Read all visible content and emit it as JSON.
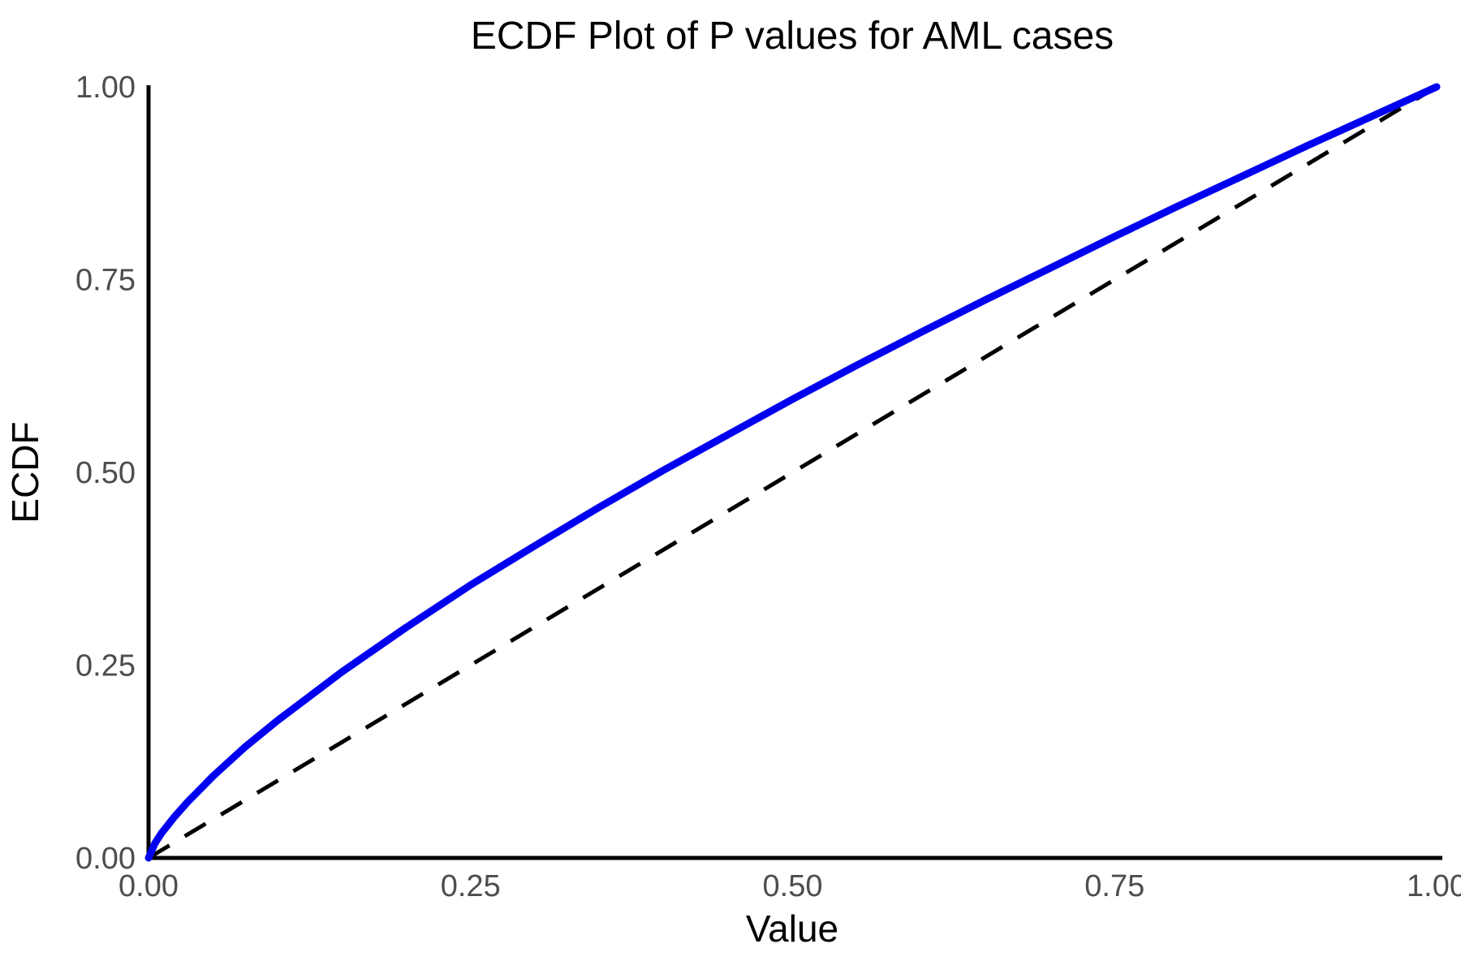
{
  "chart_data": {
    "type": "line",
    "title": "ECDF Plot of P values for AML cases",
    "xlabel": "Value",
    "ylabel": "ECDF",
    "xlim": [
      0,
      1
    ],
    "ylim": [
      0,
      1
    ],
    "grid": false,
    "legend": "none",
    "x_ticks": [
      {
        "value": 0.0,
        "label": "0.00"
      },
      {
        "value": 0.25,
        "label": "0.25"
      },
      {
        "value": 0.5,
        "label": "0.50"
      },
      {
        "value": 0.75,
        "label": "0.75"
      },
      {
        "value": 1.0,
        "label": "1.00"
      }
    ],
    "y_ticks": [
      {
        "value": 0.0,
        "label": "0.00"
      },
      {
        "value": 0.25,
        "label": "0.25"
      },
      {
        "value": 0.5,
        "label": "0.50"
      },
      {
        "value": 0.75,
        "label": "0.75"
      },
      {
        "value": 1.0,
        "label": "1.00"
      }
    ],
    "series": [
      {
        "name": "ecdf-curve",
        "style": "solid",
        "color": "#0000f0",
        "width": 9,
        "x": [
          0,
          0.005,
          0.01,
          0.02,
          0.03,
          0.04,
          0.05,
          0.075,
          0.1,
          0.15,
          0.2,
          0.25,
          0.3,
          0.35,
          0.4,
          0.45,
          0.5,
          0.55,
          0.6,
          0.65,
          0.7,
          0.75,
          0.8,
          0.85,
          0.9,
          0.95,
          1.0
        ],
        "y": [
          0,
          0.019,
          0.032,
          0.053,
          0.072,
          0.089,
          0.106,
          0.144,
          0.178,
          0.241,
          0.299,
          0.354,
          0.405,
          0.455,
          0.503,
          0.549,
          0.595,
          0.639,
          0.682,
          0.724,
          0.765,
          0.806,
          0.846,
          0.885,
          0.924,
          0.962,
          1.0
        ]
      },
      {
        "name": "reference-diagonal",
        "style": "dashed",
        "color": "#000000",
        "width": 5,
        "x": [
          0,
          1
        ],
        "y": [
          0,
          1
        ]
      }
    ],
    "colors": {
      "axis_line": "#000000",
      "tick_label": "#4d4d4d",
      "title": "#000000",
      "background": "#ffffff"
    }
  }
}
